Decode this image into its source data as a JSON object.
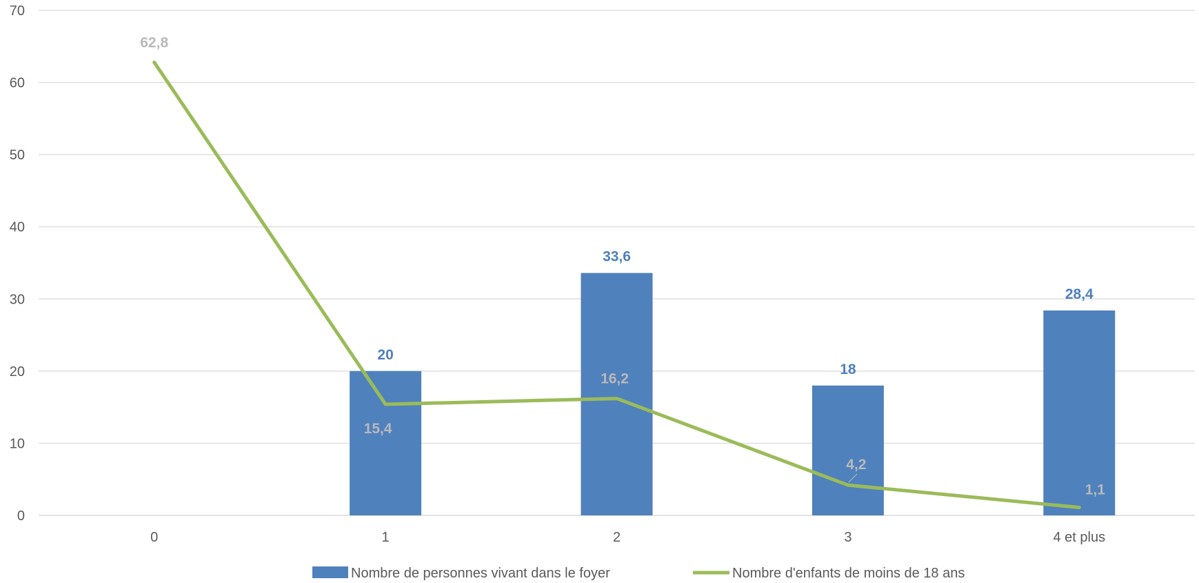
{
  "chart_data": {
    "type": "bar",
    "categories": [
      "0",
      "1",
      "2",
      "3",
      "4 et plus"
    ],
    "ylim": [
      0,
      70
    ],
    "yticks": [
      0,
      10,
      20,
      30,
      40,
      50,
      60,
      70
    ],
    "grid": true,
    "legend_position": "bottom",
    "series": [
      {
        "name": "Nombre de personnes vivant dans le foyer",
        "type": "bar",
        "color": "#4f81bd",
        "values": [
          null,
          20,
          33.6,
          18,
          28.4
        ],
        "labels": [
          "",
          "20",
          "33,6",
          "18",
          "28,4"
        ]
      },
      {
        "name": "Nombre d'enfants de moins de 18 ans",
        "type": "line",
        "color": "#9bbb59",
        "values": [
          62.8,
          15.4,
          16.2,
          4.2,
          1.1
        ],
        "labels": [
          "62,8",
          "15,4",
          "16,2",
          "4,2",
          "1,1"
        ]
      }
    ]
  }
}
